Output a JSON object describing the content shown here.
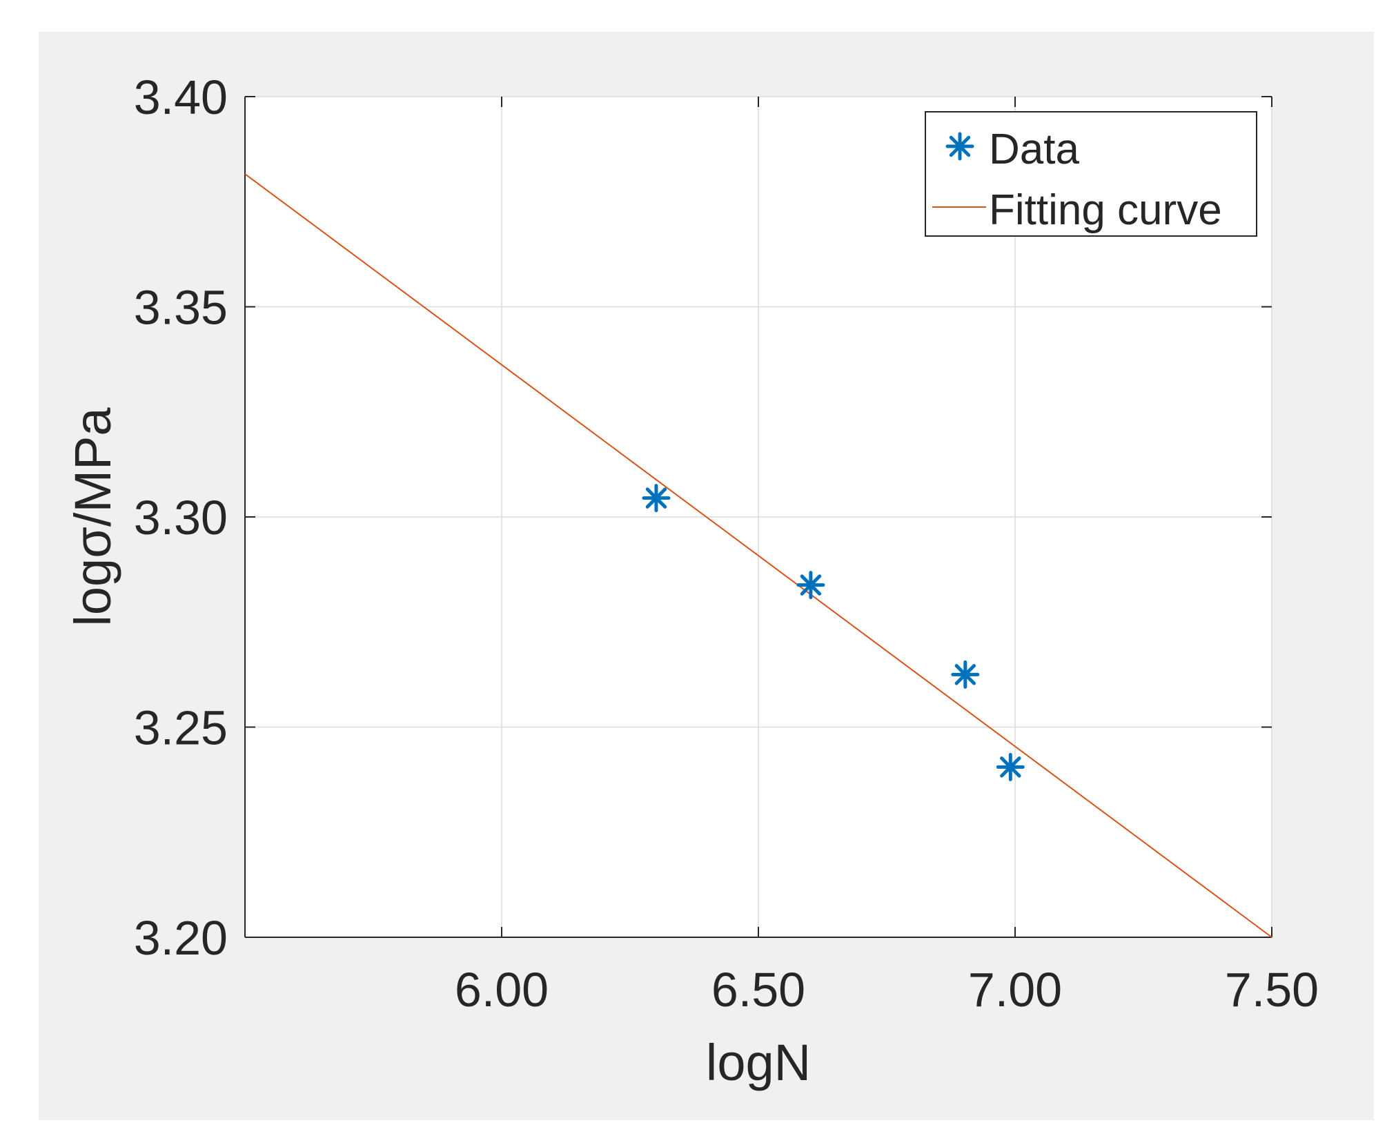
{
  "chart_data": {
    "type": "scatter",
    "xlabel": "logN",
    "ylabel": "logσ/MPa",
    "xlim": [
      5.5,
      7.5
    ],
    "ylim": [
      3.2,
      3.4
    ],
    "x_ticks": [
      6.0,
      6.5,
      7.0,
      7.5
    ],
    "x_tick_labels": [
      "6.00",
      "6.50",
      "7.00",
      "7.50"
    ],
    "y_ticks": [
      3.2,
      3.25,
      3.3,
      3.35,
      3.4
    ],
    "y_tick_labels": [
      "3.20",
      "3.25",
      "3.30",
      "3.35",
      "3.40"
    ],
    "grid": true,
    "legend_position": "top-right",
    "series": [
      {
        "name": "Data",
        "kind": "scatter",
        "marker": "asterisk",
        "color": "#0072BD",
        "points": [
          {
            "x": 6.301,
            "y": 3.3045
          },
          {
            "x": 6.602,
            "y": 3.2838
          },
          {
            "x": 6.903,
            "y": 3.2625
          },
          {
            "x": 6.991,
            "y": 3.2405
          }
        ]
      },
      {
        "name": "Fitting curve",
        "kind": "line",
        "color": "#D95319",
        "points": [
          {
            "x": 5.5,
            "y": 3.3816
          },
          {
            "x": 7.5,
            "y": 3.2
          }
        ]
      }
    ]
  },
  "colors": {
    "figure_background": "#F0F0F0",
    "axes_background": "#FFFFFF",
    "axis_color": "#262626",
    "grid_color": "#DCDCDC"
  }
}
